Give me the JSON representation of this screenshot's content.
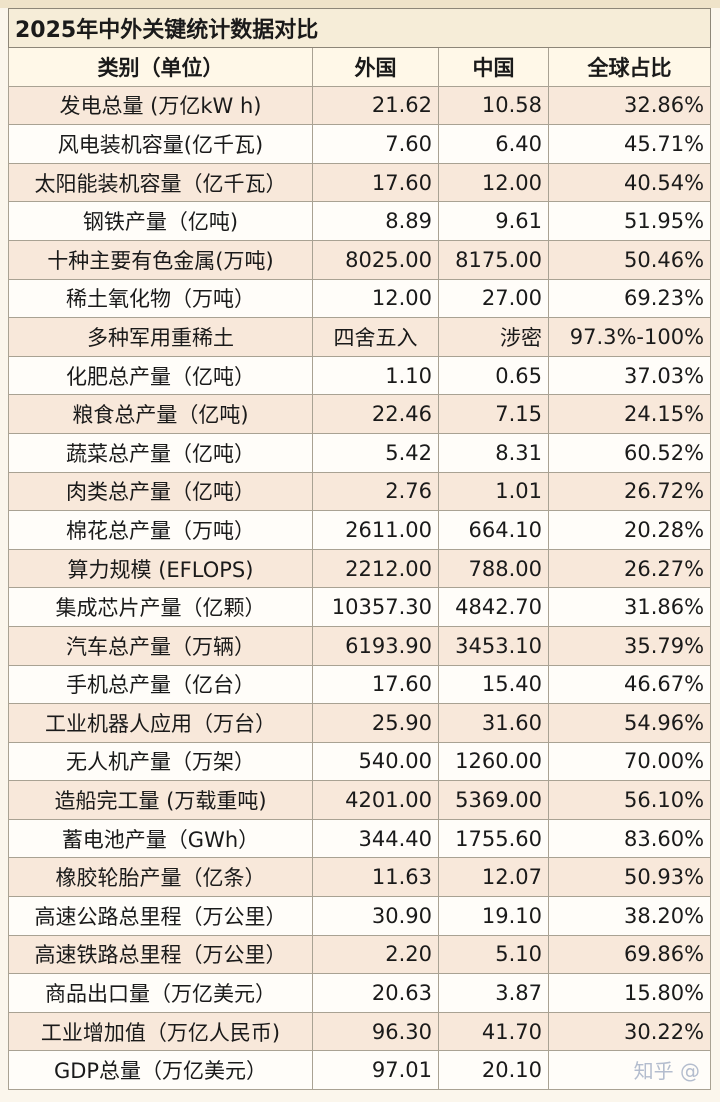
{
  "title": "2025年中外关键统计数据对比",
  "headers": [
    "类别（单位）",
    "外国",
    "中国",
    "全球占比"
  ],
  "rows": [
    [
      "发电总量 (万亿kW h)",
      "21.62",
      "10.58",
      "32.86%"
    ],
    [
      "风电装机容量(亿千瓦)",
      "7.60",
      "6.40",
      "45.71%"
    ],
    [
      "太阳能装机容量（亿千瓦）",
      "17.60",
      "12.00",
      "40.54%"
    ],
    [
      "钢铁产量（亿吨)",
      "8.89",
      "9.61",
      "51.95%"
    ],
    [
      "十种主要有色金属(万吨)",
      "8025.00",
      "8175.00",
      "50.46%"
    ],
    [
      "稀土氧化物（万吨）",
      "12.00",
      "27.00",
      "69.23%"
    ],
    [
      "多种军用重稀土",
      "四舍五入",
      "涉密",
      "97.3%-100%"
    ],
    [
      "化肥总产量（亿吨）",
      "1.10",
      "0.65",
      "37.03%"
    ],
    [
      "粮食总产量（亿吨)",
      "22.46",
      "7.15",
      "24.15%"
    ],
    [
      "蔬菜总产量（亿吨）",
      "5.42",
      "8.31",
      "60.52%"
    ],
    [
      "肉类总产量（亿吨）",
      "2.76",
      "1.01",
      "26.72%"
    ],
    [
      "棉花总产量（万吨）",
      "2611.00",
      "664.10",
      "20.28%"
    ],
    [
      "算力规模 (EFLOPS)",
      "2212.00",
      "788.00",
      "26.27%"
    ],
    [
      "集成芯片产量（亿颗）",
      "10357.30",
      "4842.70",
      "31.86%"
    ],
    [
      "汽车总产量（万辆）",
      "6193.90",
      "3453.10",
      "35.79%"
    ],
    [
      "手机总产量（亿台）",
      "17.60",
      "15.40",
      "46.67%"
    ],
    [
      "工业机器人应用（万台）",
      "25.90",
      "31.60",
      "54.96%"
    ],
    [
      "无人机产量（万架）",
      "540.00",
      "1260.00",
      "70.00%"
    ],
    [
      "造船完工量 (万载重吨)",
      "4201.00",
      "5369.00",
      "56.10%"
    ],
    [
      "蓄电池产量（GWh）",
      "344.40",
      "1755.60",
      "83.60%"
    ],
    [
      "橡胶轮胎产量（亿条）",
      "11.63",
      "12.07",
      "50.93%"
    ],
    [
      "高速公路总里程（万公里）",
      "30.90",
      "19.10",
      "38.20%"
    ],
    [
      "高速铁路总里程（万公里）",
      "2.20",
      "5.10",
      "69.86%"
    ],
    [
      "商品出口量（万亿美元）",
      "20.63",
      "3.87",
      "15.80%"
    ],
    [
      "工业增加值（万亿人民币)",
      "96.30",
      "41.70",
      "30.22%"
    ],
    [
      "GDP总量（万亿美元）",
      "97.01",
      "20.10",
      ""
    ]
  ],
  "watermark": "知乎 @"
}
